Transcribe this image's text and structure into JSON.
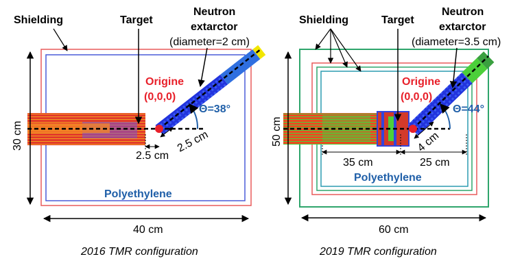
{
  "colors": {
    "origin_red": "#e8202a",
    "theta_blue": "#1f5fa8",
    "polyethylene_blue": "#1f5fa8",
    "shield_red": "#e85a5a",
    "shield_blue": "#4a5bd8",
    "shield_green": "#2ea56b",
    "shield_teal": "#2b9bb0",
    "extractor_blue": "#2233dd",
    "extractor_yellow": "#f2e600"
  },
  "left": {
    "shielding": "Shielding",
    "target": "Target",
    "neutron_line1": "Neutron",
    "neutron_line2": "extarctor",
    "diameter": "(diameter=2 cm)",
    "origine": "Origine",
    "origin_coords": "(0,0,0)",
    "theta": "Θ=38°",
    "dim_25_diag": "2.5 cm",
    "dim_25_horiz": "2.5 cm",
    "height": "30 cm",
    "width": "40 cm",
    "polyethylene": "Polyethylene",
    "caption": "2016 TMR configuration"
  },
  "right": {
    "shielding": "Shielding",
    "target": "Target",
    "neutron_line1": "Neutron",
    "neutron_line2": "extarctor",
    "diameter": "(diameter=3.5 cm)",
    "origine": "Origine",
    "origin_coords": "(0,0,0)",
    "theta": "Θ=44°",
    "dim_4": "4 cm",
    "dim_35": "35 cm",
    "dim_25": "25 cm",
    "height": "50 cm",
    "width": "60 cm",
    "polyethylene": "Polyethylene",
    "caption": "2019 TMR configuration"
  }
}
